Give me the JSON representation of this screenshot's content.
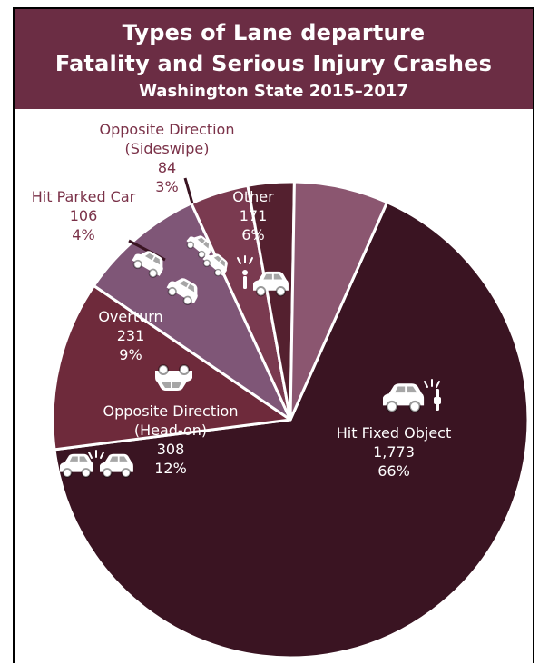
{
  "header": {
    "title_line1": "Types of Lane departure",
    "title_line2": "Fatality and Serious Injury Crashes",
    "subtitle": "Washington State 2015–2017"
  },
  "colors": {
    "header": "#6b2d44",
    "hit_fixed_object": "#3a1422",
    "head_on": "#6e2a3b",
    "overturn": "#7f5677",
    "hit_parked_car": "#7a3a50",
    "sideswipe": "#54202f",
    "other": "#8b5670",
    "outside_label": "#7a3148"
  },
  "chart_data": {
    "type": "pie",
    "title": "Types of Lane departure Fatality and Serious Injury Crashes",
    "subtitle": "Washington State 2015–2017",
    "slices": [
      {
        "label_lines": [
          "Hit Fixed Object"
        ],
        "count": "1,773",
        "value": 1773,
        "pct": "66%",
        "icon": "car-hitting-pole-icon"
      },
      {
        "label_lines": [
          "Opposite Direction",
          "(Head-on)"
        ],
        "count": "308",
        "value": 308,
        "pct": "12%",
        "icon": "head-on-cars-icon"
      },
      {
        "label_lines": [
          "Overturn"
        ],
        "count": "231",
        "value": 231,
        "pct": "9%",
        "icon": "overturned-car-icon"
      },
      {
        "label_lines": [
          "Hit Parked Car"
        ],
        "count": "106",
        "value": 106,
        "pct": "4%",
        "icon": "hit-parked-car-icon"
      },
      {
        "label_lines": [
          "Opposite Direction",
          "(Sideswipe)"
        ],
        "count": "84",
        "value": 84,
        "pct": "3%",
        "icon": "sideswipe-car-icon"
      },
      {
        "label_lines": [
          "Other"
        ],
        "count": "171",
        "value": 171,
        "pct": "6%",
        "icon": "car-pedestrian-icon"
      }
    ]
  }
}
